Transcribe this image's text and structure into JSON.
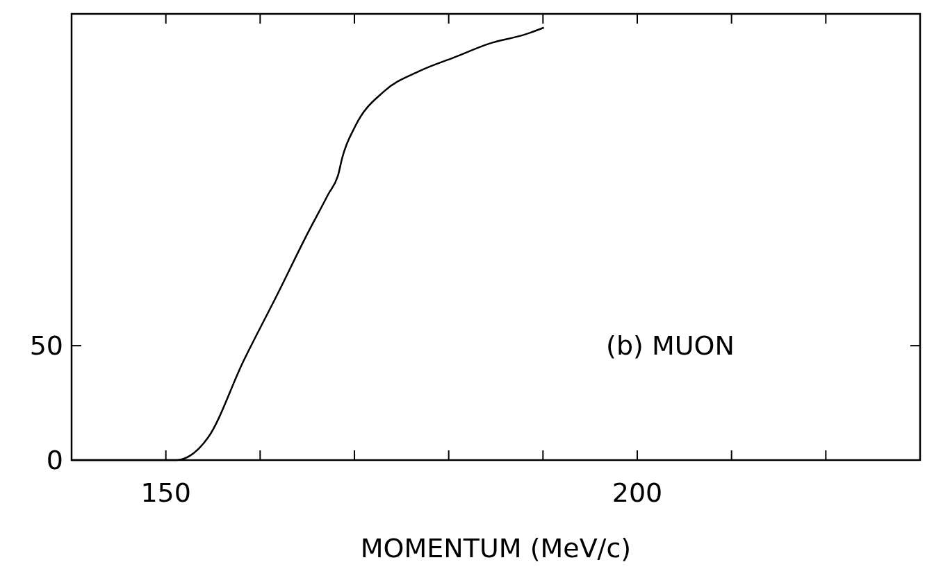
{
  "chart_data": {
    "type": "line",
    "xlabel": "MOMENTUM (MeV/c)",
    "xlim": [
      140,
      230
    ],
    "xticks": [
      150,
      {
        "value": 160,
        "label": null
      },
      {
        "value": 170,
        "label": null
      },
      {
        "value": 180,
        "label": null
      },
      {
        "value": 190,
        "label": null
      },
      200,
      {
        "value": 210,
        "label": null
      },
      {
        "value": 220,
        "label": null
      }
    ],
    "ylim": [
      0,
      195
    ],
    "yticks": [
      0,
      50
    ],
    "grid": false,
    "marker": "none",
    "line_style": "solid",
    "annotations": [
      "(b) MUON"
    ],
    "series": [
      {
        "color": "#000000",
        "x": [
          140,
          151.1,
          152.6,
          154.5,
          158.2,
          161.9,
          164.9,
          167.2,
          168.3,
          168.7,
          170.1,
          173.1,
          176.9,
          180.6,
          184.3,
          188.1,
          190.1
        ],
        "values": [
          0,
          0,
          2,
          10,
          43,
          73,
          98,
          116,
          125,
          132,
          146,
          161,
          170,
          176,
          182,
          186,
          189
        ]
      }
    ]
  }
}
